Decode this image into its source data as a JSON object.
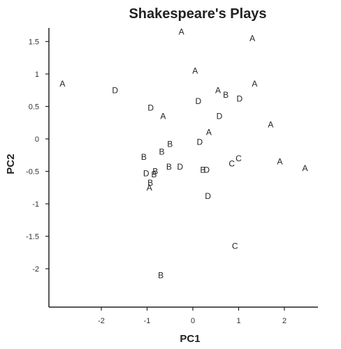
{
  "chart_data": {
    "type": "scatter",
    "title": "Shakespeare's Plays",
    "xlabel": "PC1",
    "ylabel": "PC2",
    "xlim": [
      -2.9,
      2.6
    ],
    "ylim": [
      -2.6,
      1.75
    ],
    "xticks": [
      -2,
      -1,
      0,
      1,
      2
    ],
    "yticks": [
      1.5,
      1,
      0.5,
      0,
      -0.5,
      -1,
      -1.5,
      -2
    ],
    "grid": false,
    "series": [
      {
        "marker": "A",
        "points": [
          {
            "x": -2.85,
            "y": 0.85
          },
          {
            "x": -0.25,
            "y": 1.65
          },
          {
            "x": 1.3,
            "y": 1.55
          },
          {
            "x": 0.05,
            "y": 1.05
          },
          {
            "x": 0.55,
            "y": 0.75
          },
          {
            "x": 1.35,
            "y": 0.85
          },
          {
            "x": -0.65,
            "y": 0.35
          },
          {
            "x": 1.7,
            "y": 0.22
          },
          {
            "x": 0.35,
            "y": 0.1
          },
          {
            "x": 1.9,
            "y": -0.35
          },
          {
            "x": 2.45,
            "y": -0.45
          },
          {
            "x": -0.95,
            "y": -0.75
          }
        ]
      },
      {
        "marker": "B",
        "points": [
          {
            "x": 0.72,
            "y": 0.68
          },
          {
            "x": -0.5,
            "y": -0.08
          },
          {
            "x": -0.68,
            "y": -0.2
          },
          {
            "x": -1.07,
            "y": -0.28
          },
          {
            "x": -0.82,
            "y": -0.5
          },
          {
            "x": -0.52,
            "y": -0.43
          },
          {
            "x": -0.85,
            "y": -0.55
          },
          {
            "x": -0.93,
            "y": -0.68
          },
          {
            "x": 0.22,
            "y": -0.48
          },
          {
            "x": -0.7,
            "y": -2.1
          }
        ]
      },
      {
        "marker": "C",
        "points": [
          {
            "x": 0.85,
            "y": -0.38
          },
          {
            "x": 1.0,
            "y": -0.3
          },
          {
            "x": 0.92,
            "y": -1.65
          }
        ]
      },
      {
        "marker": "D",
        "points": [
          {
            "x": -1.7,
            "y": 0.75
          },
          {
            "x": -0.92,
            "y": 0.48
          },
          {
            "x": 0.12,
            "y": 0.58
          },
          {
            "x": 1.02,
            "y": 0.62
          },
          {
            "x": 0.58,
            "y": 0.35
          },
          {
            "x": 0.15,
            "y": -0.05
          },
          {
            "x": -1.02,
            "y": -0.53
          },
          {
            "x": -0.28,
            "y": -0.43
          },
          {
            "x": 0.3,
            "y": -0.48
          },
          {
            "x": 0.33,
            "y": -0.88
          }
        ]
      }
    ]
  }
}
